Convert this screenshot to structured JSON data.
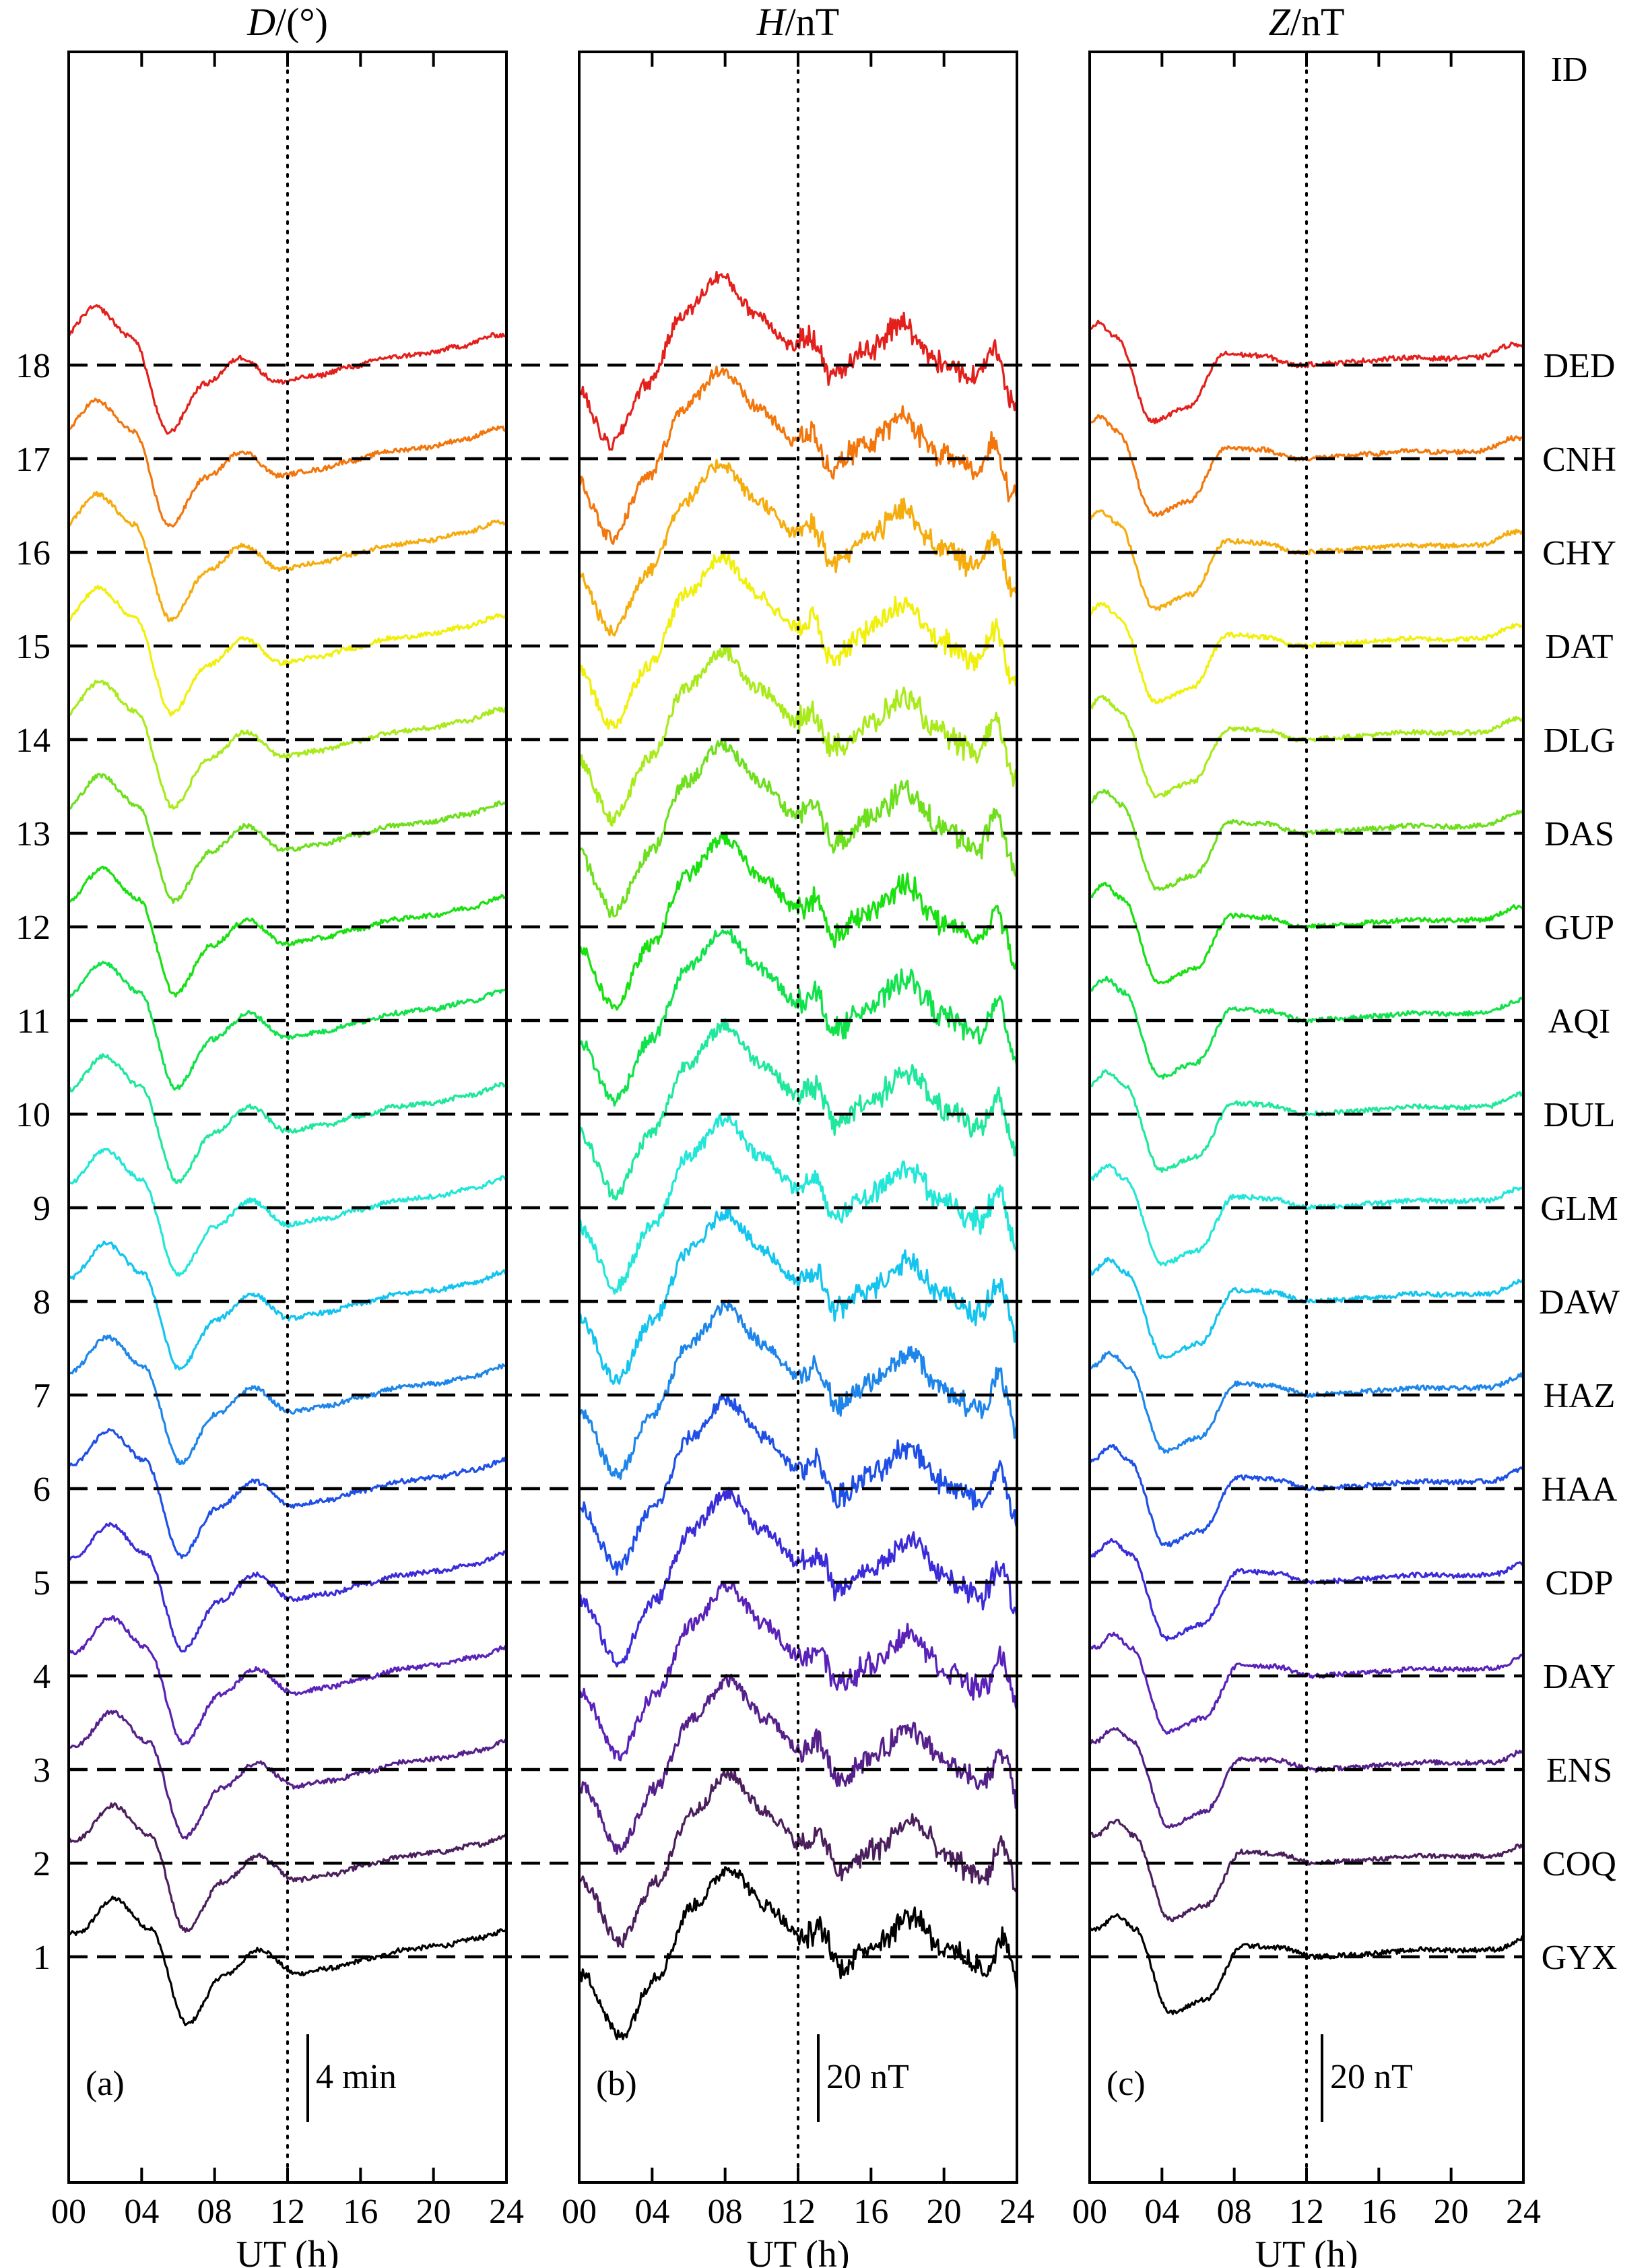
{
  "figure": {
    "id_header": "ID",
    "row_numbers": [
      "1",
      "2",
      "3",
      "4",
      "5",
      "6",
      "7",
      "8",
      "9",
      "10",
      "11",
      "12",
      "13",
      "14",
      "15",
      "16",
      "17",
      "18"
    ],
    "stations": [
      "GYX",
      "COQ",
      "ENS",
      "DAY",
      "CDP",
      "HAA",
      "HAZ",
      "DAW",
      "GLM",
      "DUL",
      "AQI",
      "GUP",
      "DAS",
      "DLG",
      "DAT",
      "CHY",
      "CNH",
      "DED"
    ],
    "station_colors": [
      "#000000",
      "#4a1f5c",
      "#55208a",
      "#5a22b8",
      "#3b2bd8",
      "#1f4fe6",
      "#1e86ea",
      "#13c4ef",
      "#22e6d8",
      "#1fe89c",
      "#10e24c",
      "#19e010",
      "#6ddf1c",
      "#a8ea1a",
      "#f1f00c",
      "#f5ac0c",
      "#f3760c",
      "#e3201c"
    ]
  },
  "chart_data": [
    {
      "type": "line",
      "panel_letter": "(a)",
      "title_symbol": "D",
      "title_unit": "/(°)",
      "xlabel": "UT (h)",
      "xlim": [
        0,
        24
      ],
      "x_ticks": [
        "00",
        "04",
        "08",
        "12",
        "16",
        "20",
        "24"
      ],
      "scale_bar": "4 min",
      "reference_line_x": 12,
      "series_keypoints": {
        "x": [
          0,
          2,
          4,
          6,
          8,
          10,
          12,
          14,
          16,
          18,
          20,
          22,
          24
        ],
        "offsets": [
          0.25,
          0.62,
          0.3,
          -0.72,
          -0.2,
          0.08,
          -0.18,
          -0.12,
          -0.02,
          0.08,
          0.12,
          0.2,
          0.32
        ]
      }
    },
    {
      "type": "line",
      "panel_letter": "(b)",
      "title_symbol": "H",
      "title_unit": "/nT",
      "xlabel": "UT (h)",
      "xlim": [
        0,
        24
      ],
      "x_ticks": [
        "00",
        "04",
        "08",
        "12",
        "16",
        "20",
        "24"
      ],
      "scale_bar": "20 nT",
      "reference_line_x": 12,
      "series_keypoints": {
        "x": [
          0,
          2,
          4,
          6,
          8,
          10,
          12,
          13,
          14,
          16,
          18,
          20,
          22,
          23,
          24
        ],
        "offsets": [
          -0.2,
          -0.85,
          -0.2,
          0.55,
          0.95,
          0.55,
          0.2,
          0.3,
          -0.1,
          0.15,
          0.45,
          0.05,
          -0.15,
          0.2,
          -0.4
        ]
      }
    },
    {
      "type": "line",
      "panel_letter": "(c)",
      "title_symbol": "Z",
      "title_unit": "/nT",
      "xlabel": "UT (h)",
      "xlim": [
        0,
        24
      ],
      "x_ticks": [
        "00",
        "04",
        "08",
        "12",
        "16",
        "20",
        "24"
      ],
      "scale_bar": "20 nT",
      "reference_line_x": 12,
      "series_keypoints": {
        "x": [
          0,
          1,
          2,
          4,
          6,
          8,
          10,
          12,
          14,
          16,
          18,
          20,
          22,
          24
        ],
        "offsets": [
          0.3,
          0.45,
          0.3,
          -0.6,
          -0.45,
          0.12,
          0.1,
          0.0,
          0.02,
          0.05,
          0.08,
          0.07,
          0.08,
          0.22
        ]
      }
    }
  ]
}
